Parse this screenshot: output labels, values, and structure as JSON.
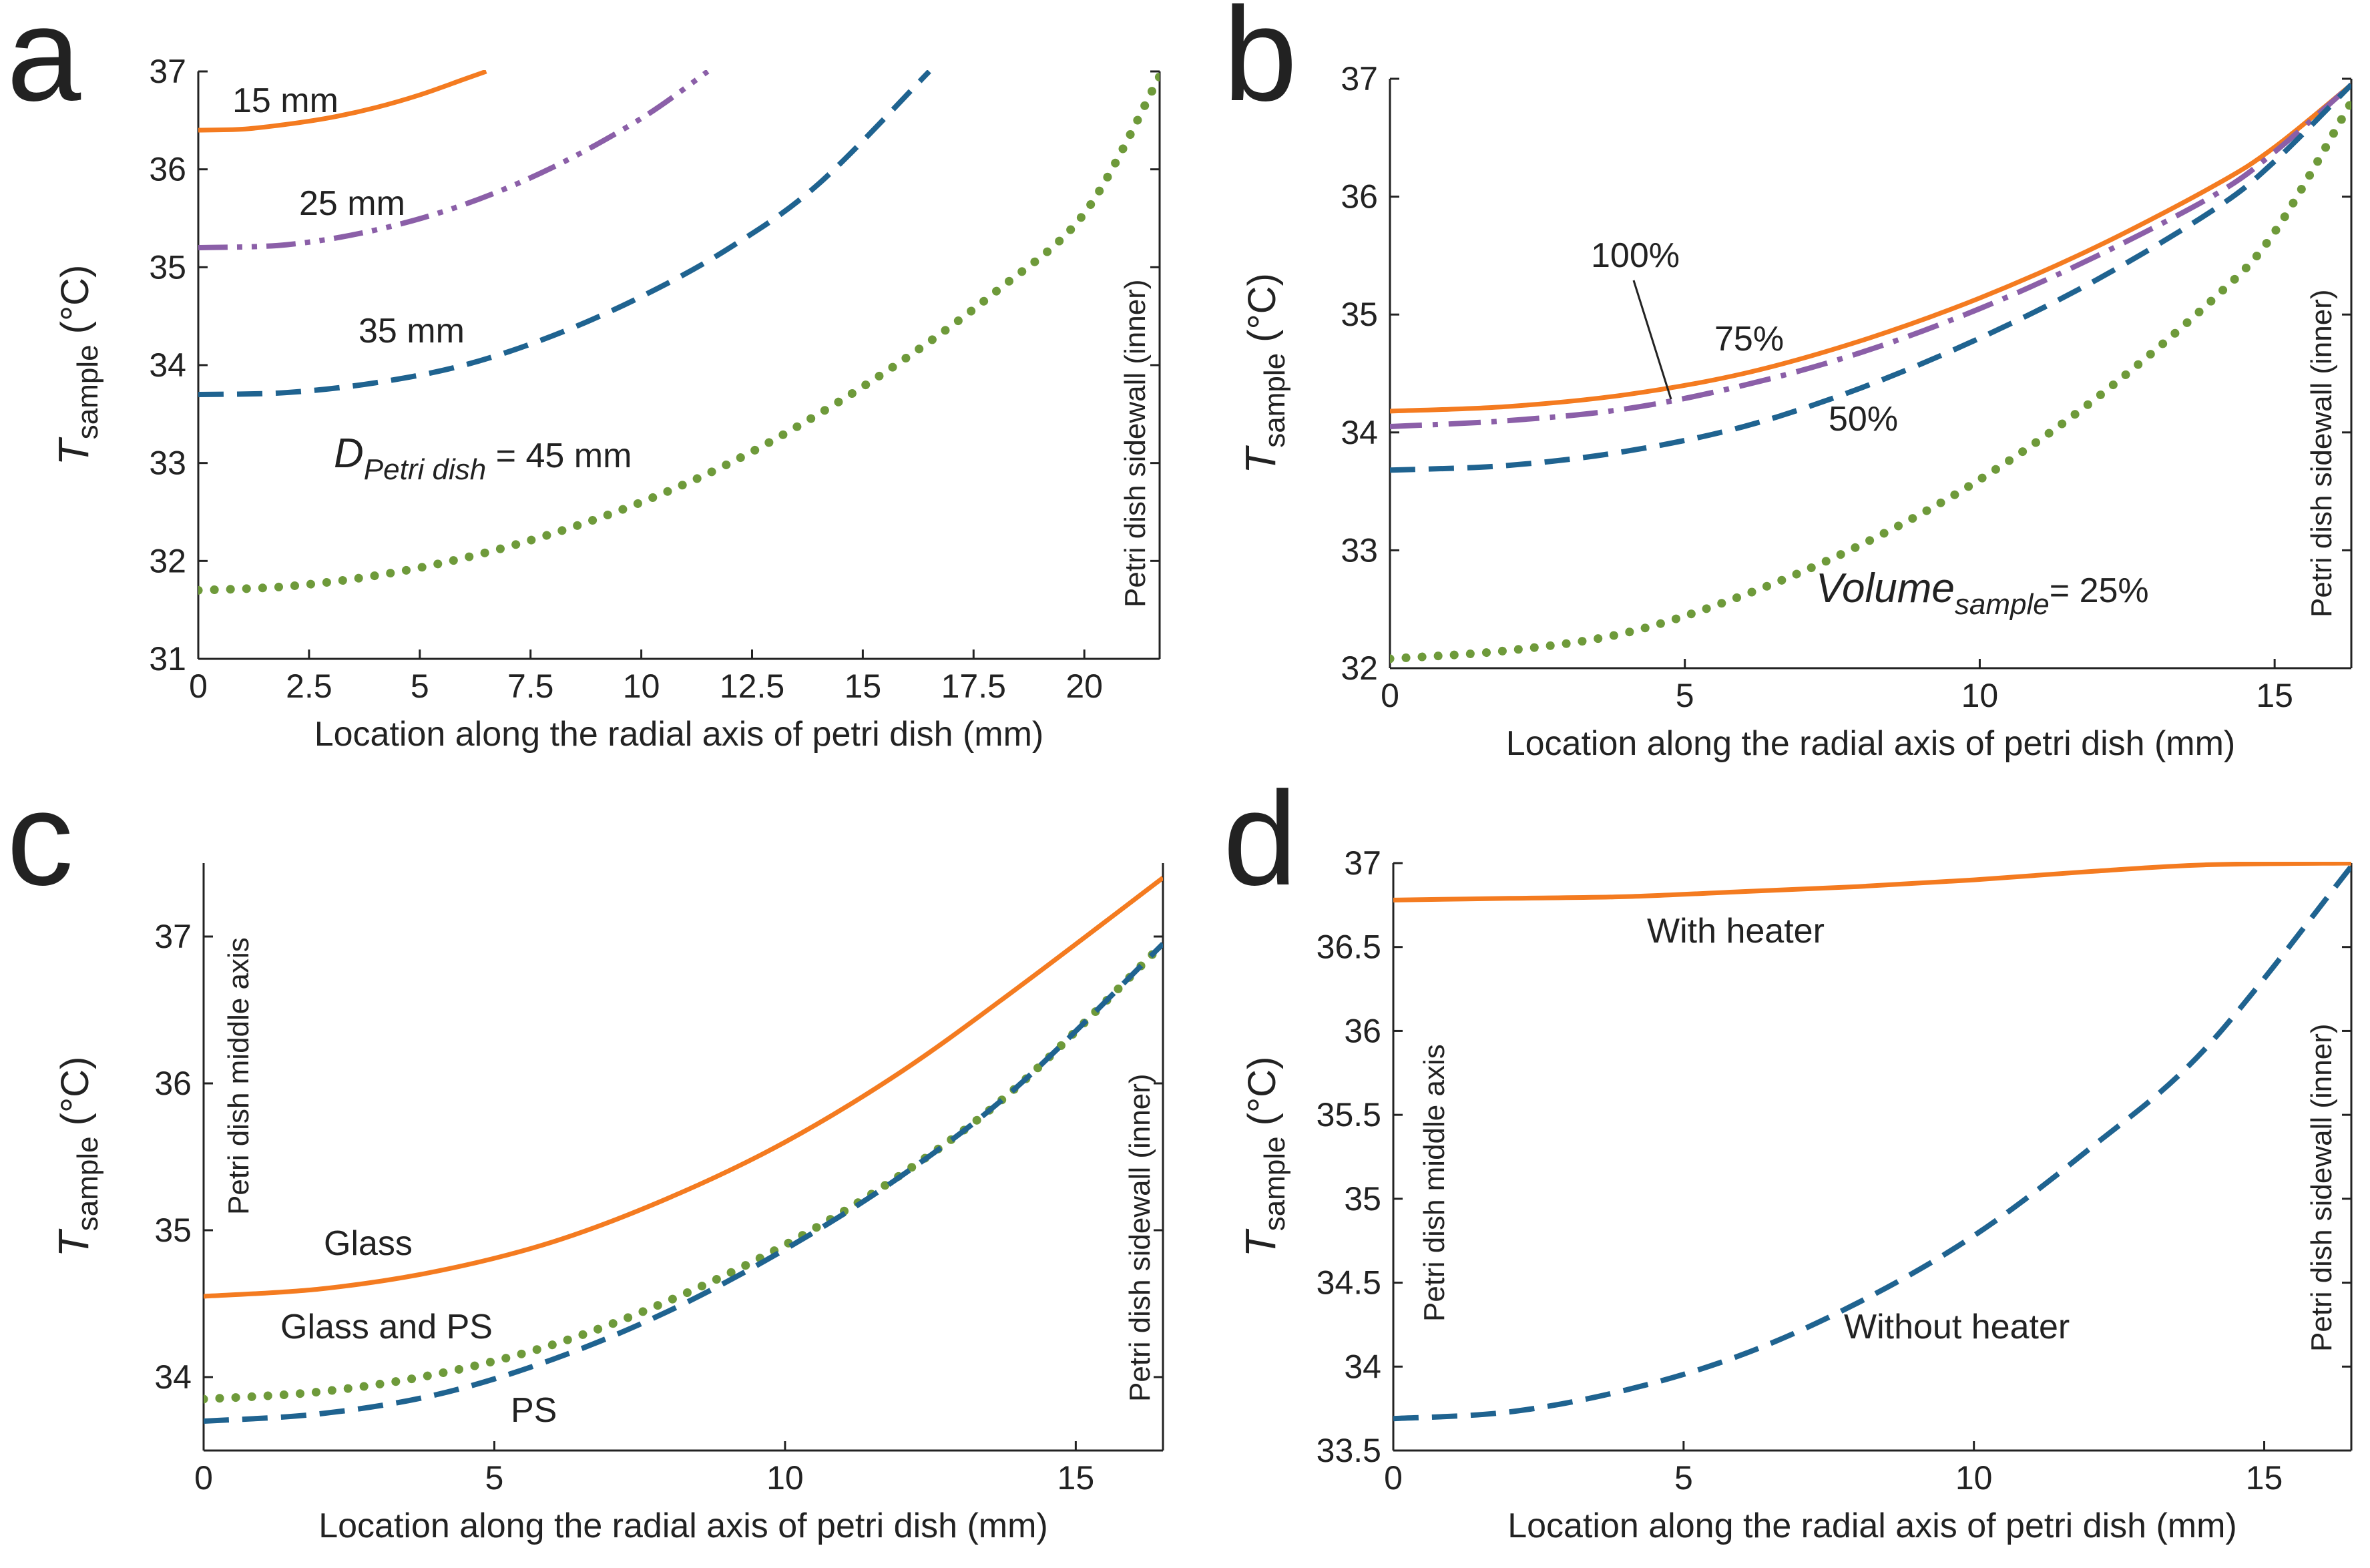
{
  "chart_data": [
    {
      "type": "line",
      "panel_label": "a",
      "xlabel": "Location along the radial axis of petri dish (mm)",
      "ylabel": {
        "main": "T",
        "sub": "sample",
        "unit": " (°C)"
      },
      "xlim": [
        0,
        21.7
      ],
      "ylim": [
        31,
        37
      ],
      "xticks": [
        0,
        2.5,
        5,
        7.5,
        10,
        12.5,
        15,
        17.5,
        20
      ],
      "xtick_labels": [
        "0",
        "2.5",
        "5",
        "7.5",
        "10",
        "12.5",
        "15",
        "17.5",
        "20"
      ],
      "yticks": [
        31,
        32,
        33,
        34,
        35,
        36,
        37
      ],
      "ytick_labels": [
        "31",
        "32",
        "33",
        "34",
        "35",
        "36",
        "37"
      ],
      "side_label": "Petri dish sidewall (inner)",
      "series": [
        {
          "name": "15 mm",
          "color": "#F47B20",
          "style": "solid",
          "x": [
            0,
            1,
            2,
            3,
            4,
            5,
            6,
            6.5
          ],
          "y": [
            36.4,
            36.41,
            36.46,
            36.53,
            36.63,
            36.76,
            36.92,
            37.0
          ]
        },
        {
          "name": "25 mm",
          "color": "#8B5FA8",
          "style": "dashdotdot",
          "x": [
            0,
            2,
            4,
            6,
            8,
            10,
            11.5
          ],
          "y": [
            35.2,
            35.23,
            35.38,
            35.64,
            36.02,
            36.52,
            37.0
          ]
        },
        {
          "name": "35 mm",
          "color": "#1F6390",
          "style": "dashed",
          "x": [
            0,
            2,
            4,
            6,
            8,
            10,
            12,
            14,
            16.5
          ],
          "y": [
            33.7,
            33.72,
            33.82,
            34.0,
            34.3,
            34.7,
            35.2,
            35.85,
            37.0
          ]
        },
        {
          "name": "45 mm",
          "color": "#6E9A3A",
          "style": "dotted",
          "x": [
            0,
            2,
            4,
            6,
            8,
            10,
            12,
            14,
            16,
            18,
            20,
            21.7
          ],
          "y": [
            31.7,
            31.74,
            31.85,
            32.03,
            32.28,
            32.6,
            33.0,
            33.5,
            34.08,
            34.75,
            35.55,
            36.95
          ]
        }
      ],
      "annotations": [
        {
          "text": "15 mm"
        },
        {
          "text": "25 mm"
        },
        {
          "text": "35 mm"
        },
        {
          "main": "D",
          "sub": "Petri dish",
          "rest": " = 45 mm"
        }
      ]
    },
    {
      "type": "line",
      "panel_label": "b",
      "xlabel": "Location along the radial axis of petri dish (mm)",
      "ylabel": {
        "main": "T",
        "sub": "sample",
        "unit": " (°C)"
      },
      "xlim": [
        0,
        16.3
      ],
      "ylim": [
        32,
        37
      ],
      "xticks": [
        0,
        5,
        10,
        15
      ],
      "xtick_labels": [
        "0",
        "5",
        "10",
        "15"
      ],
      "yticks": [
        32,
        33,
        34,
        35,
        36,
        37
      ],
      "ytick_labels": [
        "32",
        "33",
        "34",
        "35",
        "36",
        "37"
      ],
      "side_label": "Petri dish sidewall (inner)",
      "series": [
        {
          "name": "100%",
          "color": "#F47B20",
          "style": "solid",
          "x": [
            0,
            2,
            4,
            6,
            8,
            10,
            12,
            14,
            15,
            16.3
          ],
          "y": [
            34.18,
            34.22,
            34.32,
            34.5,
            34.78,
            35.14,
            35.58,
            36.1,
            36.42,
            36.95
          ]
        },
        {
          "name": "75%",
          "color": "#8B5FA8",
          "style": "dashdot",
          "x": [
            0,
            2,
            4,
            6,
            8,
            10,
            12,
            14,
            15,
            16.3
          ],
          "y": [
            34.05,
            34.1,
            34.2,
            34.4,
            34.68,
            35.05,
            35.5,
            36.02,
            36.38,
            36.95
          ]
        },
        {
          "name": "50%",
          "color": "#1F6390",
          "style": "dashed",
          "x": [
            0,
            2,
            4,
            6,
            8,
            10,
            12,
            14,
            15,
            16.3
          ],
          "y": [
            33.68,
            33.72,
            33.84,
            34.05,
            34.38,
            34.8,
            35.3,
            35.9,
            36.3,
            36.95
          ]
        },
        {
          "name": "25%",
          "color": "#6E9A3A",
          "style": "dotted",
          "x": [
            0,
            2,
            4,
            6,
            8,
            10,
            12,
            14,
            15,
            16.3
          ],
          "y": [
            32.08,
            32.15,
            32.3,
            32.62,
            33.05,
            33.6,
            34.3,
            35.15,
            35.7,
            36.8
          ]
        }
      ],
      "annotations": [
        {
          "text": "100%"
        },
        {
          "text": "75%"
        },
        {
          "text": "50%"
        },
        {
          "main": "Volume",
          "sub": "sample",
          "rest": "= 25%"
        }
      ]
    },
    {
      "type": "line",
      "panel_label": "c",
      "xlabel": "Location along the radial axis of petri dish (mm)",
      "ylabel": {
        "main": "T",
        "sub": "sample",
        "unit": " (°C)"
      },
      "xlim": [
        0,
        16.5
      ],
      "ylim": [
        33.5,
        37.5
      ],
      "xticks": [
        0,
        5,
        10,
        15
      ],
      "xtick_labels": [
        "0",
        "5",
        "10",
        "15"
      ],
      "yticks": [
        34,
        35,
        36,
        37
      ],
      "ytick_labels": [
        "34",
        "35",
        "36",
        "37"
      ],
      "side_label": "Petri dish sidewall (inner)",
      "middle_label": "Petri dish middle axis",
      "series": [
        {
          "name": "Glass",
          "color": "#F47B20",
          "style": "solid",
          "x": [
            0,
            2,
            4,
            6,
            8,
            10,
            12,
            14,
            16.5
          ],
          "y": [
            34.55,
            34.6,
            34.72,
            34.92,
            35.22,
            35.6,
            36.08,
            36.65,
            37.4
          ]
        },
        {
          "name": "Glass and PS",
          "color": "#6E9A3A",
          "style": "dotted",
          "x": [
            0,
            2,
            4,
            6,
            8,
            10,
            12,
            14,
            16.5
          ],
          "y": [
            33.85,
            33.9,
            34.02,
            34.22,
            34.52,
            34.9,
            35.38,
            35.98,
            36.95
          ]
        },
        {
          "name": "PS",
          "color": "#1F6390",
          "style": "dashed",
          "x": [
            0,
            2,
            4,
            6,
            8,
            10,
            12,
            14,
            16.5
          ],
          "y": [
            33.7,
            33.75,
            33.88,
            34.12,
            34.45,
            34.87,
            35.37,
            35.98,
            36.95
          ]
        }
      ],
      "annotations": [
        {
          "text": "Glass"
        },
        {
          "text": "Glass and PS"
        },
        {
          "text": "PS"
        }
      ]
    },
    {
      "type": "line",
      "panel_label": "d",
      "xlabel": "Location along the radial axis of petri dish (mm)",
      "ylabel": {
        "main": "T",
        "sub": "sample",
        "unit": " (°C)"
      },
      "xlim": [
        0,
        16.5
      ],
      "ylim": [
        33.5,
        37
      ],
      "xticks": [
        0,
        5,
        10,
        15
      ],
      "xtick_labels": [
        "0",
        "5",
        "10",
        "15"
      ],
      "yticks": [
        33.5,
        34,
        34.5,
        35,
        35.5,
        36,
        36.5,
        37
      ],
      "ytick_labels": [
        "33.5",
        "34",
        "34.5",
        "35",
        "35.5",
        "36",
        "36.5",
        "37"
      ],
      "side_label": "Petri dish sidewall (inner)",
      "middle_label": "Petri dish middle axis",
      "series": [
        {
          "name": "With heater",
          "color": "#F47B20",
          "style": "solid",
          "x": [
            0,
            2,
            4,
            6,
            8,
            10,
            12,
            14,
            16.5
          ],
          "y": [
            36.78,
            36.79,
            36.8,
            36.83,
            36.86,
            36.9,
            36.95,
            36.99,
            37.0
          ]
        },
        {
          "name": "Without heater",
          "color": "#1F6390",
          "style": "dashed",
          "x": [
            0,
            2,
            4,
            6,
            8,
            10,
            12,
            14,
            16.5
          ],
          "y": [
            33.69,
            33.73,
            33.86,
            34.07,
            34.38,
            34.78,
            35.3,
            35.9,
            36.98
          ]
        }
      ],
      "annotations": [
        {
          "text": "With heater"
        },
        {
          "text": "Without heater"
        }
      ]
    }
  ]
}
